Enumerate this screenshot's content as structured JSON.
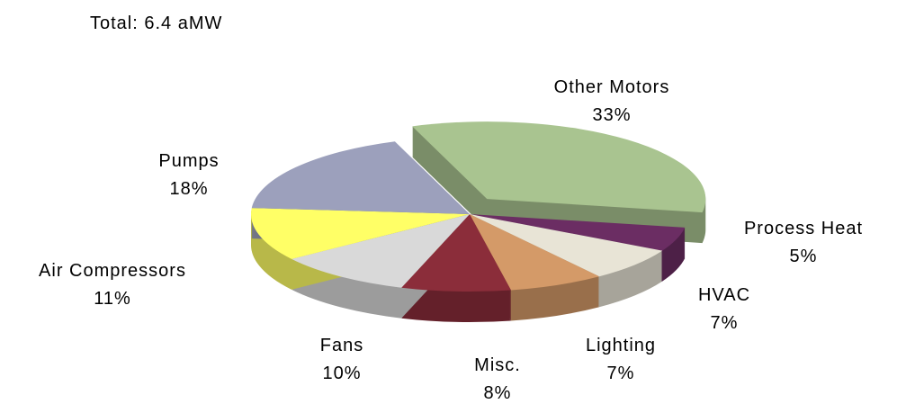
{
  "chart_data": {
    "type": "pie",
    "title": "Total: 6.4 aMW",
    "categories": [
      "Other Motors",
      "Process Heat",
      "HVAC",
      "Lighting",
      "Misc.",
      "Fans",
      "Air Compressors",
      "Pumps"
    ],
    "values": [
      33,
      5,
      7,
      7,
      8,
      10,
      11,
      18
    ],
    "value_labels": [
      "33%",
      "5%",
      "7%",
      "7%",
      "8%",
      "10%",
      "11%",
      "18%"
    ],
    "colors": [
      "#a9c490",
      "#6b2d63",
      "#e8e4d6",
      "#d49a68",
      "#8b2d3a",
      "#d9d9d9",
      "#ffff66",
      "#9ca0bc"
    ],
    "exploded": [
      "Other Motors"
    ]
  }
}
